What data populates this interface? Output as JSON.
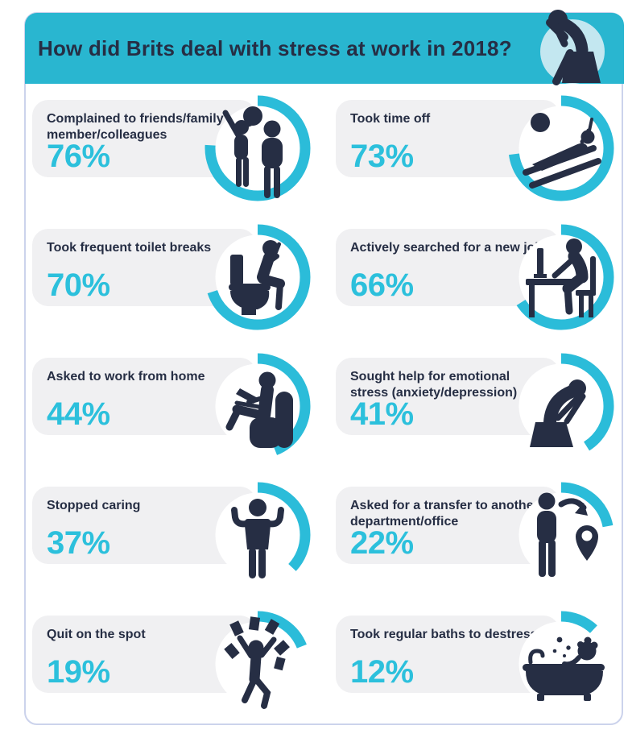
{
  "header": {
    "title": "How did Brits deal with stress at work in 2018?",
    "icon": "stressed-person-icon"
  },
  "colors": {
    "header_teal": "#29b6d0",
    "arc_teal": "#2bbcd9",
    "percent_teal": "#2cc0dc",
    "navy": "#262e44",
    "card_bg": "#f0f0f2",
    "container_border": "#ccd3ec",
    "header_icon_bg": "#c3e7f0",
    "circle_bg": "#ffffff"
  },
  "items": [
    {
      "label": "Complained to friends/family member/colleagues",
      "percent": "76%",
      "value": 76,
      "icon": "two-people-speech-icon"
    },
    {
      "label": "Took time off",
      "percent": "73%",
      "value": 73,
      "icon": "lounging-person-icon"
    },
    {
      "label": "Took frequent toilet breaks",
      "percent": "70%",
      "value": 70,
      "icon": "person-on-toilet-icon"
    },
    {
      "label": "Actively searched for a new job",
      "percent": "66%",
      "value": 66,
      "icon": "person-at-computer-icon"
    },
    {
      "label": "Asked to work from home",
      "percent": "44%",
      "value": 44,
      "icon": "person-armchair-laptop-icon"
    },
    {
      "label": "Sought help for emotional stress (anxiety/depression)",
      "percent": "41%",
      "value": 41,
      "icon": "person-head-in-hands-icon"
    },
    {
      "label": "Stopped caring",
      "percent": "37%",
      "value": 37,
      "icon": "shrugging-person-icon"
    },
    {
      "label": "Asked for a transfer to another department/office",
      "percent": "22%",
      "value": 22,
      "icon": "person-transfer-pin-icon"
    },
    {
      "label": "Quit on the spot",
      "percent": "19%",
      "value": 19,
      "icon": "person-throwing-papers-icon"
    },
    {
      "label": "Took regular baths to destress",
      "percent": "12%",
      "value": 12,
      "icon": "person-in-bathtub-icon"
    }
  ],
  "chart_data": {
    "type": "bar",
    "title": "How did Brits deal with stress at work in 2018?",
    "categories": [
      "Complained to friends/family member/colleagues",
      "Took time off",
      "Took frequent toilet breaks",
      "Actively searched for a new job",
      "Asked to work from home",
      "Sought help for emotional stress (anxiety/depression)",
      "Stopped caring",
      "Asked for a transfer to another department/office",
      "Quit on the spot",
      "Took regular baths to destress"
    ],
    "values": [
      76,
      73,
      70,
      66,
      44,
      41,
      37,
      22,
      19,
      12
    ],
    "unit": "%",
    "value_range": [
      0,
      100
    ],
    "legend": "none",
    "layout": "infographic: two-column grid of pictogram cards, each with a percentage ring; ring arc starts at 12 o'clock and sweeps clockwise in proportion to the value"
  }
}
